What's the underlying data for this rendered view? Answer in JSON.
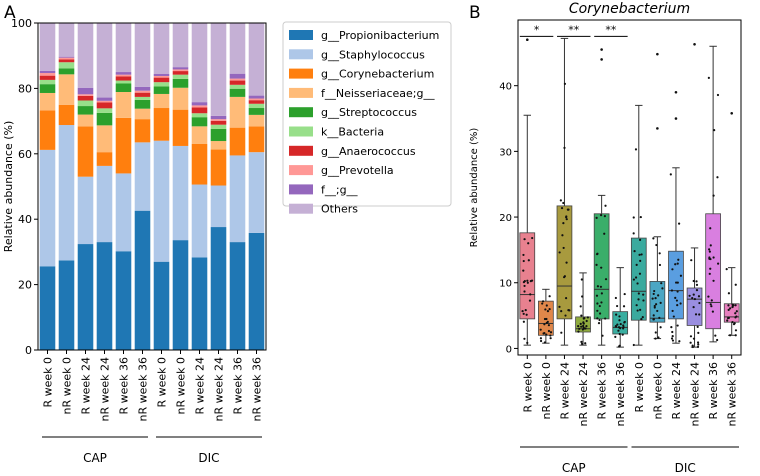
{
  "chart_data": [
    {
      "type": "bar",
      "stacked": true,
      "panel_label": "A",
      "ylabel": "Relative abundance (%)",
      "ylim": [
        0,
        100
      ],
      "yticks": [
        0,
        20,
        40,
        60,
        80,
        100
      ],
      "categories": [
        "R week 0",
        "nR week 0",
        "R week 24",
        "nR week 24",
        "R week 36",
        "nR week 36",
        "R week 0",
        "nR week 0",
        "R week 24",
        "nR week 24",
        "R week 36",
        "nR week 36"
      ],
      "groups": [
        {
          "label": "CAP",
          "from": 0,
          "to": 5
        },
        {
          "label": "DIC",
          "from": 6,
          "to": 11
        }
      ],
      "legend_position": "right",
      "series": [
        {
          "name": "g__Propionibacterium",
          "color": "#1f77b4",
          "values": [
            25.6,
            27.4,
            32.4,
            33.0,
            30.2,
            42.6,
            27.0,
            33.6,
            28.3,
            37.6,
            33.0,
            35.8
          ]
        },
        {
          "name": "g__Staphylococcus",
          "color": "#aec7e8",
          "values": [
            35.6,
            41.4,
            20.6,
            23.3,
            23.8,
            20.9,
            37.0,
            28.8,
            22.3,
            12.7,
            26.5,
            24.7
          ]
        },
        {
          "name": "g__Corynebacterium",
          "color": "#ff7f0e",
          "values": [
            12.1,
            6.2,
            15.4,
            4.2,
            17.0,
            7.1,
            10.0,
            11.1,
            12.4,
            11.0,
            8.5,
            7.9
          ]
        },
        {
          "name": "f__Neisseriaceae;g__",
          "color": "#ffbb78",
          "values": [
            5.3,
            9.3,
            3.6,
            8.2,
            7.9,
            3.2,
            4.3,
            6.7,
            5.4,
            2.6,
            9.4,
            3.5
          ]
        },
        {
          "name": "g__Streptococcus",
          "color": "#2ca02c",
          "values": [
            2.7,
            1.8,
            2.6,
            3.8,
            2.6,
            2.7,
            2.3,
            2.7,
            2.8,
            3.7,
            2.5,
            2.1
          ]
        },
        {
          "name": "k__Bacteria",
          "color": "#98df8a",
          "values": [
            1.3,
            1.9,
            1.7,
            1.4,
            0.9,
            0.9,
            1.3,
            1.3,
            1.2,
            1.3,
            1.2,
            1.3
          ]
        },
        {
          "name": "g__Anaerococcus",
          "color": "#d62728",
          "values": [
            1.3,
            0.9,
            1.4,
            1.8,
            1.3,
            1.3,
            1.4,
            1.1,
            1.8,
            1.2,
            1.3,
            1.1
          ]
        },
        {
          "name": "g__Prevotella",
          "color": "#ff9896",
          "values": [
            0.8,
            0.5,
            0.5,
            0.5,
            0.5,
            0.6,
            0.5,
            0.5,
            0.6,
            0.5,
            0.6,
            0.5
          ]
        },
        {
          "name": "f__;g__",
          "color": "#9467bd",
          "values": [
            0.7,
            0.3,
            2.0,
            1.0,
            0.8,
            1.2,
            0.6,
            0.7,
            1.0,
            1.0,
            1.5,
            0.9
          ]
        },
        {
          "name": "Others",
          "color": "#c5b0d5",
          "values": [
            14.6,
            10.3,
            19.8,
            22.8,
            15.0,
            19.5,
            15.6,
            13.5,
            24.2,
            28.4,
            15.5,
            22.2
          ]
        }
      ]
    },
    {
      "type": "box",
      "panel_label": "B",
      "title": "Corynebacterium",
      "ylabel": "Relative abundance (%)",
      "ylim": [
        -1,
        50
      ],
      "yticks": [
        0,
        10,
        20,
        30,
        40
      ],
      "categories": [
        "R week 0",
        "nR week 0",
        "R week 24",
        "nR week 24",
        "R week 36",
        "nR week 36",
        "R week 0",
        "nR week 0",
        "R week 24",
        "nR week 24",
        "R week 36",
        "nR week 36"
      ],
      "groups": [
        {
          "label": "CAP",
          "from": 0,
          "to": 5
        },
        {
          "label": "DIC",
          "from": 6,
          "to": 11
        }
      ],
      "boxes": [
        {
          "color": "#e8818f",
          "q1": 4.5,
          "median": 8.2,
          "q3": 17.6,
          "whisker_low": 0.5,
          "whisker_high": 35.5,
          "outliers": [
            47.0
          ]
        },
        {
          "color": "#e0874a",
          "q1": 2.0,
          "median": 3.8,
          "q3": 7.2,
          "whisker_low": 0.8,
          "whisker_high": 9.0,
          "outliers": []
        },
        {
          "color": "#a89a3e",
          "q1": 4.5,
          "median": 9.5,
          "q3": 21.7,
          "whisker_low": 0.5,
          "whisker_high": 47.2,
          "outliers": []
        },
        {
          "color": "#8fab3e",
          "q1": 2.5,
          "median": 3.0,
          "q3": 4.8,
          "whisker_low": 0.5,
          "whisker_high": 11.5,
          "outliers": []
        },
        {
          "color": "#3aae6a",
          "q1": 4.5,
          "median": 9.0,
          "q3": 20.5,
          "whisker_low": 0.5,
          "whisker_high": 23.3,
          "outliers": [
            44.0,
            45.5
          ]
        },
        {
          "color": "#3aaea0",
          "q1": 2.2,
          "median": 3.2,
          "q3": 5.6,
          "whisker_low": 0.2,
          "whisker_high": 12.3,
          "outliers": []
        },
        {
          "color": "#3aaa9e",
          "q1": 4.3,
          "median": 8.7,
          "q3": 16.8,
          "whisker_low": 0.5,
          "whisker_high": 37.0,
          "outliers": []
        },
        {
          "color": "#4ba6c4",
          "q1": 4.0,
          "median": 4.6,
          "q3": 10.2,
          "whisker_low": 1.5,
          "whisker_high": 17.0,
          "outliers": [
            33.5,
            44.8
          ]
        },
        {
          "color": "#5a9ee0",
          "q1": 4.5,
          "median": 8.8,
          "q3": 14.8,
          "whisker_low": 0.8,
          "whisker_high": 27.5,
          "outliers": [
            35.0,
            39.0
          ]
        },
        {
          "color": "#9a8ee0",
          "q1": 3.5,
          "median": 7.5,
          "q3": 9.2,
          "whisker_low": 0.2,
          "whisker_high": 15.3,
          "outliers": [
            46.3
          ]
        },
        {
          "color": "#d97fe0",
          "q1": 3.0,
          "median": 7.0,
          "q3": 20.5,
          "whisker_low": 1.0,
          "whisker_high": 46.0,
          "outliers": []
        },
        {
          "color": "#e87fbf",
          "q1": 4.0,
          "median": 4.8,
          "q3": 6.8,
          "whisker_low": 2.0,
          "whisker_high": 12.3,
          "outliers": [
            35.8
          ]
        }
      ],
      "significance": [
        {
          "from": 0,
          "to": 1,
          "label": "*",
          "y": 47.5
        },
        {
          "from": 2,
          "to": 3,
          "label": "**",
          "y": 47.5
        },
        {
          "from": 4,
          "to": 5,
          "label": "**",
          "y": 47.5
        }
      ]
    }
  ]
}
